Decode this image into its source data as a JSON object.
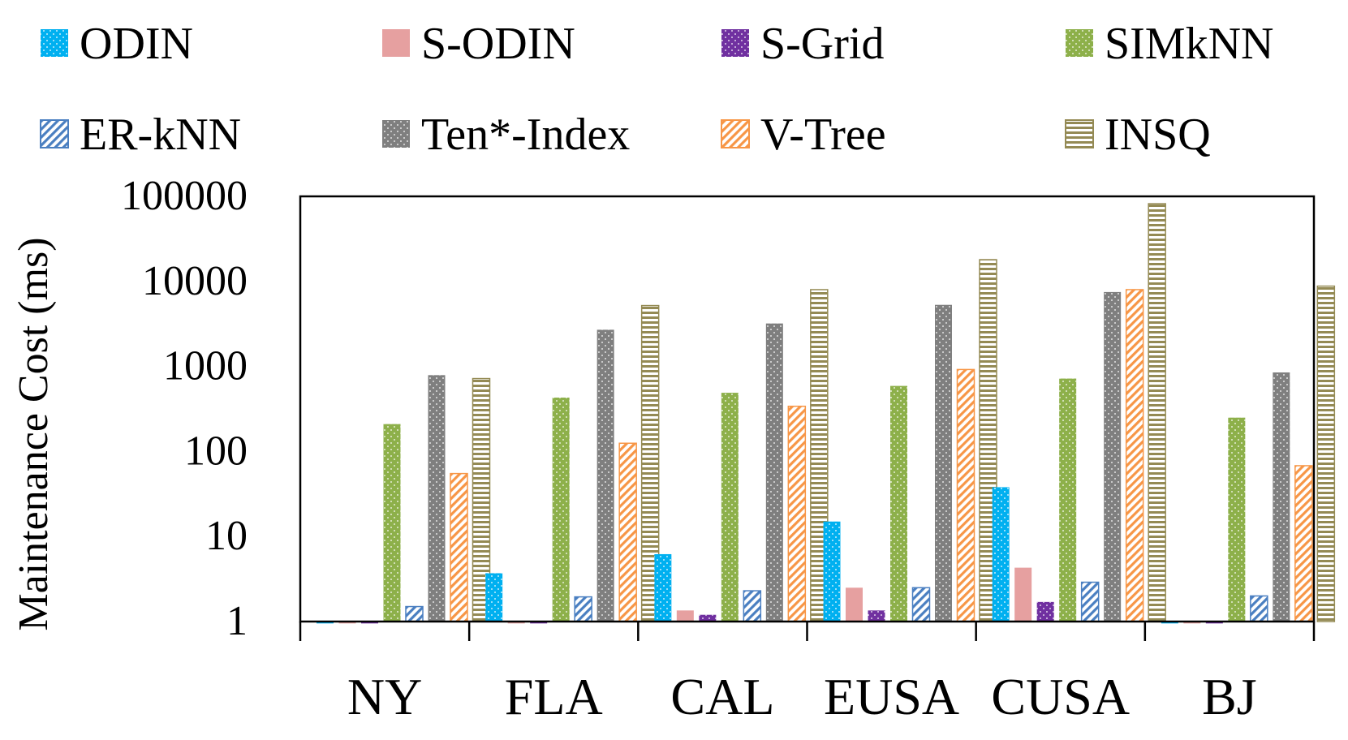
{
  "chart_data": {
    "type": "bar",
    "ylabel": "Maintenance Cost (ms)",
    "yscale": "log",
    "ylim": [
      1,
      100000
    ],
    "yticks": [
      "1",
      "10",
      "100",
      "1000",
      "10000",
      "100000"
    ],
    "grid": false,
    "legend_position": "top",
    "categories": [
      "NY",
      "FLA",
      "CAL",
      "EUSA",
      "CUSA",
      "BJ"
    ],
    "series": [
      {
        "name": "ODIN",
        "color": "#00b0f0",
        "pattern": "dots-white",
        "values": [
          0.95,
          3.7,
          6.2,
          15,
          38,
          0.95
        ]
      },
      {
        "name": "S-ODIN",
        "color": "#e6a0a0",
        "pattern": "solid",
        "values": [
          0.95,
          0.95,
          1.35,
          2.5,
          4.3,
          0.95
        ]
      },
      {
        "name": "S-Grid",
        "color": "#7030a0",
        "pattern": "dots-white",
        "values": [
          0.95,
          0.95,
          1.2,
          1.35,
          1.7,
          0.95
        ]
      },
      {
        "name": "SIMkNN",
        "color": "#8db04a",
        "pattern": "dots-white",
        "values": [
          210,
          430,
          490,
          590,
          720,
          250
        ]
      },
      {
        "name": "ER-kNN",
        "color": "#4a7fc1",
        "pattern": "diag-blue",
        "values": [
          1.5,
          1.95,
          2.3,
          2.5,
          2.9,
          2.0
        ]
      },
      {
        "name": "Ten*-Index",
        "color": "#7f7f7f",
        "pattern": "dots-white",
        "values": [
          790,
          2700,
          3200,
          5300,
          7500,
          850
        ]
      },
      {
        "name": "V-Tree",
        "color": "#f79646",
        "pattern": "diag-orange",
        "values": [
          55,
          125,
          340,
          920,
          8000,
          68
        ]
      },
      {
        "name": "INSQ",
        "color": "#948a54",
        "pattern": "hlines",
        "values": [
          720,
          5200,
          8000,
          18000,
          82000,
          8800
        ]
      }
    ]
  }
}
